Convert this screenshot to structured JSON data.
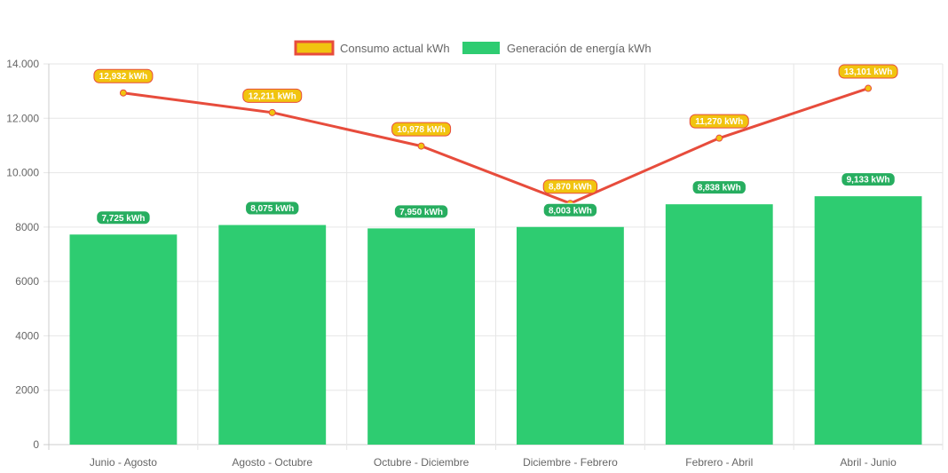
{
  "chart_data": {
    "type": "bar",
    "categories": [
      "Junio - Agosto",
      "Agosto - Octubre",
      "Octubre - Diciembre",
      "Diciembre - Febrero",
      "Febrero - Abril",
      "Abril - Junio"
    ],
    "ylim": [
      0,
      14000
    ],
    "yticks": [
      0,
      2000,
      4000,
      6000,
      8000,
      10000,
      12000,
      14000
    ],
    "ytick_labels": [
      "0",
      "2000",
      "4000",
      "6000",
      "8000",
      "10.000",
      "12.000",
      "14.000"
    ],
    "grid": true,
    "legend_position": "top-center",
    "series": [
      {
        "name": "Consumo actual kWh",
        "type": "line",
        "color": "#e74c3c",
        "fill_color": "#f1c40f",
        "values": [
          12932,
          12211,
          10978,
          8870,
          11270,
          13101
        ],
        "labels": [
          "12,932 kWh",
          "12,211 kWh",
          "10,978 kWh",
          "8,870 kWh",
          "11,270 kWh",
          "13,101 kWh"
        ]
      },
      {
        "name": "Generación de energía kWh",
        "type": "bar",
        "color": "#2ecc71",
        "values": [
          7725,
          8075,
          7950,
          8003,
          8838,
          9133
        ],
        "labels": [
          "7,725 kWh",
          "8,075 kWh",
          "7,950 kWh",
          "8,003 kWh",
          "8,838 kWh",
          "9,133 kWh"
        ]
      }
    ]
  }
}
